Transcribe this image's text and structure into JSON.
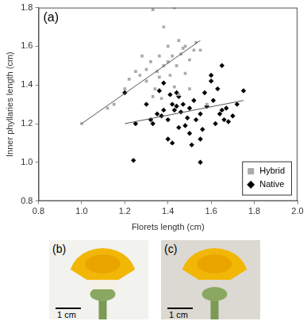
{
  "chart_data": {
    "type": "scatter",
    "annotation": "(a)",
    "x_label": "Florets length (cm)",
    "y_label": "Inner phyllaries length (cm)",
    "xlim": [
      0.8,
      2.0
    ],
    "xticks": [
      0.8,
      {
        "value": 1.0,
        "label": "1.0"
      },
      1.2,
      1.4,
      1.6,
      1.8,
      {
        "value": 2.0,
        "label": "2.0"
      }
    ],
    "ylim": [
      0.8,
      1.8
    ],
    "yticks": [
      0.8,
      {
        "value": 1.0,
        "label": "1.0"
      },
      1.2,
      1.4,
      1.6,
      1.8
    ],
    "grid": false,
    "legend": "bottom right",
    "series": [
      {
        "name": "Hybrid",
        "color": "#aaaaaa",
        "marker": "square",
        "x": [
          1.0,
          1.12,
          1.15,
          1.2,
          1.22,
          1.25,
          1.27,
          1.28,
          1.3,
          1.3,
          1.32,
          1.33,
          1.34,
          1.35,
          1.36,
          1.36,
          1.38,
          1.38,
          1.4,
          1.4,
          1.41,
          1.42,
          1.43,
          1.43,
          1.44,
          1.45,
          1.45,
          1.46,
          1.47,
          1.48,
          1.48,
          1.5,
          1.5,
          1.52,
          1.53,
          1.55,
          1.33,
          1.37,
          1.58
        ],
        "values": [
          1.2,
          1.28,
          1.3,
          1.38,
          1.43,
          1.47,
          1.45,
          1.55,
          1.48,
          1.42,
          1.52,
          1.79,
          1.38,
          1.47,
          1.44,
          1.55,
          1.7,
          1.5,
          1.52,
          1.6,
          1.45,
          1.55,
          1.39,
          1.8,
          1.5,
          1.63,
          1.35,
          1.56,
          1.59,
          1.46,
          1.6,
          1.53,
          1.38,
          1.58,
          1.62,
          1.58,
          1.34,
          1.33,
          1.3
        ]
      },
      {
        "name": "Native",
        "color": "#000000",
        "marker": "diamond",
        "x": [
          1.2,
          1.25,
          1.24,
          1.3,
          1.32,
          1.33,
          1.35,
          1.36,
          1.37,
          1.38,
          1.38,
          1.4,
          1.4,
          1.41,
          1.42,
          1.42,
          1.43,
          1.44,
          1.44,
          1.45,
          1.45,
          1.46,
          1.47,
          1.48,
          1.49,
          1.5,
          1.5,
          1.51,
          1.52,
          1.53,
          1.55,
          1.55,
          1.56,
          1.57,
          1.58,
          1.6,
          1.6,
          1.61,
          1.62,
          1.63,
          1.64,
          1.65,
          1.65,
          1.66,
          1.67,
          1.68,
          1.7,
          1.72,
          1.75,
          1.55
        ],
        "values": [
          1.36,
          1.2,
          1.01,
          1.3,
          1.22,
          1.2,
          1.25,
          1.37,
          1.24,
          1.27,
          1.41,
          1.12,
          1.22,
          1.35,
          1.1,
          1.3,
          1.27,
          1.29,
          1.36,
          1.34,
          1.18,
          1.26,
          1.3,
          1.19,
          1.23,
          1.15,
          1.28,
          1.09,
          1.32,
          1.22,
          1.25,
          1.12,
          1.17,
          1.36,
          1.29,
          1.45,
          1.42,
          1.32,
          1.2,
          1.38,
          1.25,
          1.27,
          1.5,
          1.22,
          1.28,
          1.21,
          1.24,
          1.3,
          1.37,
          1.0
        ]
      },
      {
        "type": "line",
        "color": "#555555",
        "line_style": "solid",
        "x": [
          1.0,
          1.55
        ],
        "values": [
          1.2,
          1.63
        ]
      },
      {
        "type": "line",
        "color": "#555555",
        "line_style": "solid",
        "x": [
          1.2,
          1.75
        ],
        "values": [
          1.2,
          1.32
        ]
      }
    ]
  },
  "panels": [
    {
      "label": "(b)",
      "scale_bar": "1 cm"
    },
    {
      "label": "(c)",
      "scale_bar": "1 cm"
    }
  ]
}
